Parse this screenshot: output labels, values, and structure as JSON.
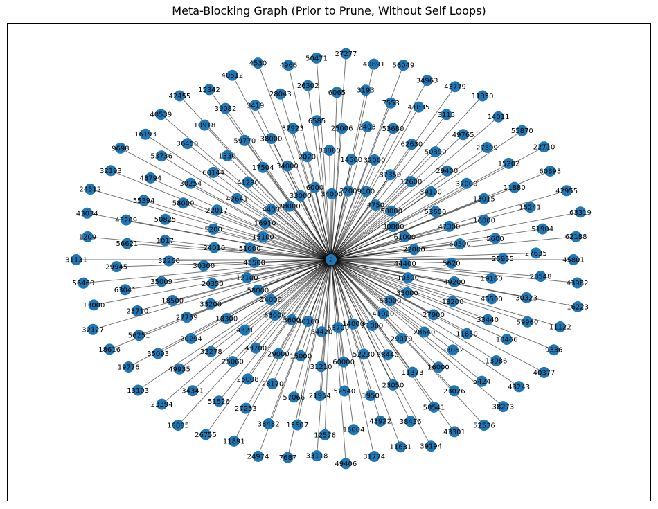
{
  "title": "Meta-Blocking Graph (Prior to Prune, Without Self Loops)",
  "colors": {
    "node": "#1f77b4",
    "edge": "#000000",
    "frame": "#000000",
    "background": "#ffffff"
  },
  "hub": {
    "label": "2"
  },
  "nodes": [
    "45801",
    "43982",
    "16223",
    "11122",
    "9336",
    "40377",
    "43243",
    "38273",
    "52536",
    "43301",
    "39194",
    "11631",
    "31774",
    "49406",
    "33118",
    "7687",
    "24974",
    "11891",
    "26755",
    "18885",
    "23394",
    "13103",
    "19776",
    "18616",
    "32127",
    "13000",
    "56460",
    "31131",
    "1209",
    "43034",
    "24512",
    "32193",
    "9698",
    "16193",
    "40539",
    "42455",
    "15342",
    "40512",
    "4530",
    "4966",
    "50471",
    "27277",
    "40891",
    "56049",
    "34963",
    "43779",
    "11350",
    "14011",
    "55870",
    "22710",
    "60893",
    "42955",
    "63319",
    "62188",
    "59960",
    "10466",
    "13986",
    "5424",
    "23026",
    "58541",
    "38436",
    "43922",
    "15004",
    "12578",
    "15607",
    "38482",
    "27253",
    "51526",
    "34341",
    "49935",
    "35093",
    "56251",
    "23710",
    "63041",
    "29945",
    "56621",
    "43209",
    "55394",
    "48794",
    "53736",
    "36450",
    "10918",
    "39082",
    "3419",
    "28043",
    "26302",
    "6065",
    "3193",
    "7553",
    "41835",
    "3115",
    "49765",
    "27599",
    "15202",
    "11880",
    "15241",
    "51904",
    "27635",
    "28548",
    "30323",
    "33062",
    "16000",
    "11373",
    "23050",
    "1950",
    "52540",
    "21954",
    "57066",
    "28170",
    "25008",
    "25060",
    "32278",
    "20294",
    "27759",
    "18500",
    "35009",
    "32260",
    "1017",
    "50825",
    "58000",
    "30254",
    "60144",
    "1330",
    "59770",
    "38000",
    "37923",
    "6585",
    "25006",
    "2403",
    "53680",
    "62630",
    "50390",
    "29400",
    "37000",
    "13015",
    "16000",
    "5600",
    "25955",
    "19160",
    "45500",
    "33440",
    "11850",
    "58440",
    "52230",
    "60000",
    "31210",
    "15000",
    "29000",
    "43700",
    "4321",
    "18300",
    "33200",
    "20350",
    "30300",
    "24010",
    "5200",
    "22017",
    "42641",
    "41290",
    "17504",
    "34000",
    "2020",
    "33000",
    "14500",
    "32000",
    "37350",
    "12600",
    "39100",
    "53600",
    "47300",
    "60500",
    "5620",
    "49200",
    "18200",
    "27900",
    "28640",
    "29070",
    "53700",
    "54420",
    "40160",
    "3600",
    "63000",
    "24000",
    "58000",
    "12100",
    "45500",
    "51000",
    "15100",
    "16910",
    "4400",
    "28000",
    "33000",
    "6000",
    "34000",
    "2200",
    "9100",
    "4750",
    "50000",
    "30800",
    "61000",
    "22000",
    "44400",
    "10500",
    "35000",
    "53000",
    "41000",
    "21000",
    "14000"
  ]
}
